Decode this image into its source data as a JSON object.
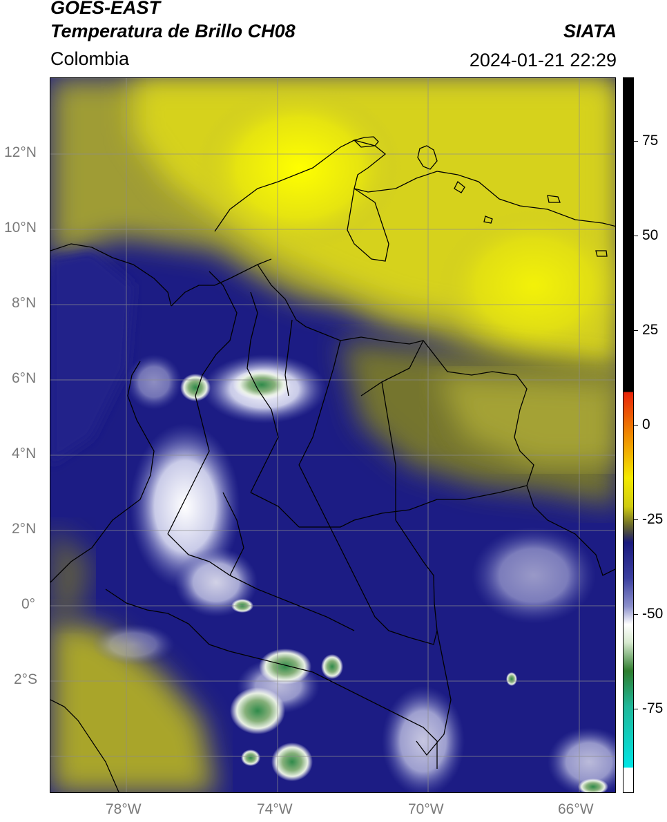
{
  "header": {
    "satellite": "GOES-EAST",
    "product": "Temperatura de Brillo CH08",
    "region": "Colombia",
    "source": "SIATA",
    "datetime": "2024-01-21 22:29"
  },
  "map": {
    "lon_range": [
      -80,
      -65
    ],
    "lat_range": [
      -5,
      14
    ],
    "lon_ticks": [
      "78°W",
      "74°W",
      "70°W",
      "66°W"
    ],
    "lat_ticks": [
      "12°N",
      "10°N",
      "8°N",
      "6°N",
      "4°N",
      "2°N",
      "0°",
      "2°S"
    ],
    "gridlines": true
  },
  "colorbar": {
    "ticks": [
      "75",
      "50",
      "25",
      "0",
      "-25",
      "-50",
      "-75"
    ],
    "colors": {
      "warm": "#000000",
      "red": "#e8240a",
      "orange": "#f08a00",
      "yellow": "#f4ea00",
      "olive": "#6e6d2a",
      "navy": "#1a1a7e",
      "periwinkle": "#8c90cc",
      "white": "#ffffff",
      "green": "#2e7d2e",
      "teal": "#1fb89a",
      "cyan": "#00e5e5"
    }
  }
}
